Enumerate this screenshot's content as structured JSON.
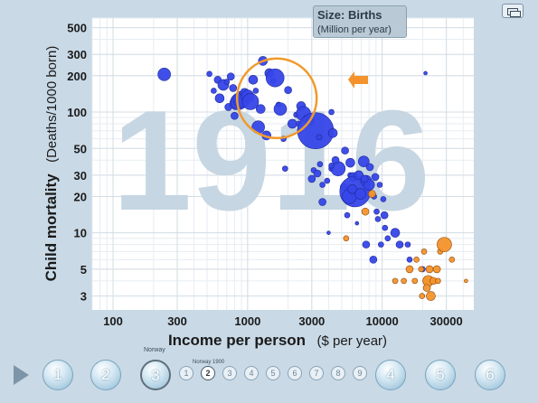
{
  "chart_data": {
    "type": "scatter",
    "year_label": "1916",
    "xlabel_main": "Income per person",
    "xlabel_unit": "($ per year)",
    "ylabel_main": "Child mortality",
    "ylabel_unit": "(Deaths/1000 born)",
    "x_scale": "log",
    "y_scale": "log",
    "xlim": [
      70,
      48000
    ],
    "ylim": [
      2.3,
      600
    ],
    "x_ticks": [
      100,
      300,
      1000,
      3000,
      10000,
      30000
    ],
    "x_tick_labels": [
      "100",
      "300",
      "1000",
      "3000",
      "10000",
      "30000"
    ],
    "y_ticks": [
      3,
      5,
      10,
      20,
      30,
      50,
      100,
      200,
      300,
      500
    ],
    "y_tick_labels": [
      "3",
      "5",
      "10",
      "20",
      "30",
      "50",
      "100",
      "200",
      "300",
      "500"
    ],
    "size_legend": "Size: Births",
    "size_unit": "(Million per year)",
    "grid": true,
    "colors": {
      "asia": "#3646e8",
      "europe": "#f4922b",
      "highlight_ring": "#f19a2c",
      "year": "#c6d6e2",
      "bg": "#ffffff"
    },
    "highlight": {
      "x": 1650,
      "y": 130,
      "r": 44
    },
    "series": [
      {
        "group": "blue",
        "points": [
          [
            240,
            205,
            7
          ],
          [
            520,
            207,
            3
          ],
          [
            560,
            150,
            3
          ],
          [
            600,
            185,
            4
          ],
          [
            620,
            130,
            5
          ],
          [
            660,
            168,
            6
          ],
          [
            700,
            178,
            3
          ],
          [
            720,
            110,
            4
          ],
          [
            750,
            197,
            4
          ],
          [
            780,
            158,
            4
          ],
          [
            800,
            93,
            4
          ],
          [
            820,
            118,
            7
          ],
          [
            860,
            122,
            9
          ],
          [
            900,
            127,
            9
          ],
          [
            950,
            144,
            5
          ],
          [
            1000,
            135,
            7
          ],
          [
            1050,
            122,
            9
          ],
          [
            1100,
            185,
            5
          ],
          [
            1150,
            150,
            3
          ],
          [
            1200,
            75,
            7
          ],
          [
            1250,
            106,
            5
          ],
          [
            1300,
            265,
            5
          ],
          [
            1380,
            64,
            5
          ],
          [
            1450,
            210,
            5
          ],
          [
            1550,
            182,
            3
          ],
          [
            1600,
            192,
            10
          ],
          [
            1700,
            115,
            3
          ],
          [
            1750,
            106,
            7
          ],
          [
            1850,
            60,
            3
          ],
          [
            1900,
            34,
            3
          ],
          [
            2000,
            152,
            4
          ],
          [
            2150,
            80,
            5
          ],
          [
            2300,
            95,
            3
          ],
          [
            2400,
            80,
            3
          ],
          [
            2450,
            70,
            3
          ],
          [
            2500,
            112,
            5
          ],
          [
            2600,
            97,
            8
          ],
          [
            2750,
            88,
            4
          ],
          [
            2900,
            84,
            5
          ],
          [
            3200,
            70,
            20
          ],
          [
            3400,
            62,
            3
          ],
          [
            4200,
            100,
            3
          ],
          [
            4300,
            67,
            5
          ],
          [
            3100,
            33,
            3
          ],
          [
            3300,
            31,
            4
          ],
          [
            3450,
            37,
            3
          ],
          [
            3900,
            27,
            3
          ],
          [
            3000,
            28,
            4
          ],
          [
            3600,
            25,
            3
          ],
          [
            4200,
            34,
            3
          ],
          [
            4700,
            34,
            8
          ],
          [
            5200,
            24,
            4
          ],
          [
            5800,
            38,
            5
          ],
          [
            4500,
            40,
            4
          ],
          [
            5300,
            48,
            4
          ],
          [
            5800,
            30,
            3
          ],
          [
            6100,
            29,
            5
          ],
          [
            6300,
            22,
            17
          ],
          [
            6700,
            30,
            5
          ],
          [
            7300,
            39,
            6
          ],
          [
            7600,
            27,
            6
          ],
          [
            8000,
            25,
            6
          ],
          [
            8100,
            35,
            4
          ],
          [
            8900,
            29,
            4
          ],
          [
            9100,
            15,
            3
          ],
          [
            9600,
            25,
            3
          ],
          [
            10400,
            14,
            4
          ],
          [
            8700,
            20,
            3
          ],
          [
            10200,
            19,
            3
          ],
          [
            10500,
            11,
            3
          ],
          [
            7600,
            8,
            4
          ],
          [
            8600,
            6,
            4
          ],
          [
            9800,
            8,
            3
          ],
          [
            9300,
            13,
            3
          ],
          [
            5700,
            20,
            8
          ],
          [
            6000,
            23,
            5
          ],
          [
            6900,
            21,
            6
          ],
          [
            7400,
            28,
            4
          ],
          [
            12500,
            10,
            5
          ],
          [
            13500,
            8,
            4
          ],
          [
            15500,
            8,
            3
          ],
          [
            11000,
            9,
            3
          ],
          [
            16000,
            6,
            3
          ],
          [
            20000,
            5,
            3
          ],
          [
            21000,
            210,
            2
          ],
          [
            4200,
            36,
            3
          ],
          [
            3600,
            18,
            4
          ],
          [
            5500,
            14,
            3
          ],
          [
            4000,
            10,
            2
          ],
          [
            6500,
            12,
            2
          ]
        ]
      },
      {
        "group": "orange",
        "points": [
          [
            7500,
            15,
            4
          ],
          [
            8400,
            21,
            4
          ],
          [
            5400,
            9,
            3
          ],
          [
            16000,
            5,
            4
          ],
          [
            14500,
            4,
            3
          ],
          [
            12500,
            4,
            3
          ],
          [
            17500,
            4,
            3
          ],
          [
            18000,
            6,
            3
          ],
          [
            19500,
            5,
            3
          ],
          [
            20500,
            7,
            3
          ],
          [
            21000,
            4,
            3
          ],
          [
            22000,
            4,
            6
          ],
          [
            22500,
            5,
            4
          ],
          [
            23000,
            3,
            5
          ],
          [
            24000,
            4,
            4
          ],
          [
            25500,
            5,
            4
          ],
          [
            27000,
            7,
            3
          ],
          [
            26000,
            4,
            3
          ],
          [
            29000,
            8,
            8
          ],
          [
            33000,
            6,
            3
          ],
          [
            42000,
            4,
            2
          ],
          [
            21500,
            3.5,
            4
          ],
          [
            19800,
            3,
            3
          ]
        ]
      }
    ]
  },
  "overlay": {
    "size_title": "Size: Births",
    "size_unit": "(Million per year)"
  },
  "timeline": {
    "hover_label": "Norway",
    "hover_sub": "Norway 1900",
    "big_steps": [
      "1",
      "2",
      "3",
      "4",
      "5",
      "6"
    ],
    "small_steps": [
      "1",
      "2",
      "3",
      "4",
      "5",
      "6",
      "7",
      "8",
      "9"
    ]
  }
}
